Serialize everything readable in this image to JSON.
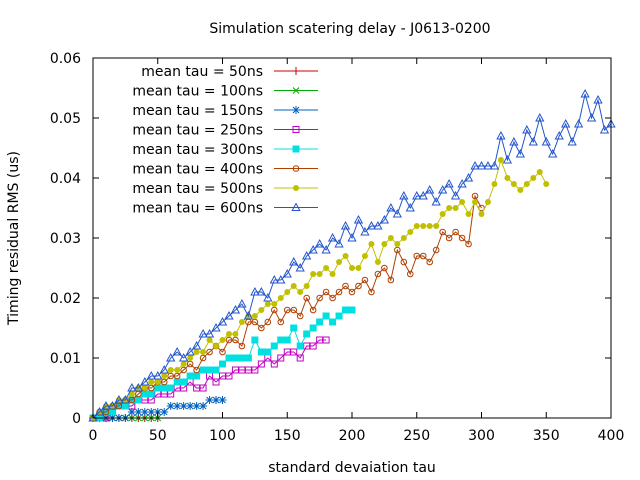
{
  "chart_data": {
    "type": "line",
    "title": "Simulation scatering delay - J0613-0200",
    "xlabel": "standard devaiation tau",
    "ylabel": "Timing residual RMS (us)",
    "xlim": [
      0,
      400
    ],
    "ylim": [
      0,
      0.06
    ],
    "xticks": [
      0,
      50,
      100,
      150,
      200,
      250,
      300,
      350,
      400
    ],
    "yticks": [
      0,
      0.01,
      0.02,
      0.03,
      0.04,
      0.05,
      0.06
    ],
    "xtick_labels": [
      "0",
      "50",
      "100",
      "150",
      "200",
      "250",
      "300",
      "350",
      "400"
    ],
    "ytick_labels": [
      "0",
      "0.01",
      "0.02",
      "0.03",
      "0.04",
      "0.05",
      "0.06"
    ],
    "grid": false,
    "legend_position": "top-left",
    "series": [
      {
        "name": "mean tau = 50ns",
        "color": "#cc0000",
        "marker": "plus",
        "x": [
          0,
          5,
          10,
          15,
          20,
          25,
          30,
          35,
          40,
          45,
          50
        ],
        "y": [
          0,
          0,
          0,
          0,
          0,
          0,
          0,
          0,
          0,
          0,
          0
        ]
      },
      {
        "name": "mean tau = 100ns",
        "color": "#00aa00",
        "marker": "cross",
        "x": [
          0,
          5,
          10,
          15,
          20,
          25,
          30,
          35,
          40,
          45,
          50
        ],
        "y": [
          0,
          0,
          0,
          0,
          0,
          0,
          0,
          0,
          0,
          0,
          0
        ]
      },
      {
        "name": "mean tau = 150ns",
        "color": "#0060c0",
        "marker": "star",
        "x": [
          0,
          5,
          10,
          15,
          20,
          25,
          30,
          35,
          40,
          45,
          50,
          55,
          60,
          65,
          70,
          75,
          80,
          85,
          90,
          95,
          100
        ],
        "y": [
          0,
          0,
          0,
          0,
          0,
          0,
          0.001,
          0.001,
          0.001,
          0.001,
          0.001,
          0.001,
          0.002,
          0.002,
          0.002,
          0.002,
          0.002,
          0.002,
          0.003,
          0.003,
          0.003
        ]
      },
      {
        "name": "mean tau = 250ns",
        "color": "#c000c0",
        "marker": "square",
        "x": [
          0,
          5,
          10,
          15,
          20,
          25,
          30,
          35,
          40,
          45,
          50,
          55,
          60,
          65,
          70,
          75,
          80,
          85,
          90,
          95,
          100,
          105,
          110,
          115,
          120,
          125,
          130,
          135,
          140,
          145,
          150,
          155,
          160,
          165,
          170,
          175,
          180
        ],
        "y": [
          0,
          0,
          0,
          0.001,
          0.002,
          0.002,
          0.002,
          0.003,
          0.003,
          0.003,
          0.004,
          0.004,
          0.004,
          0.005,
          0.005,
          0.006,
          0.005,
          0.005,
          0.007,
          0.006,
          0.007,
          0.007,
          0.008,
          0.008,
          0.008,
          0.008,
          0.009,
          0.01,
          0.009,
          0.01,
          0.011,
          0.011,
          0.01,
          0.012,
          0.012,
          0.013,
          0.013
        ]
      },
      {
        "name": "mean tau = 300ns",
        "color": "#00e0e0",
        "marker": "filled-square",
        "x": [
          0,
          5,
          10,
          15,
          20,
          25,
          30,
          35,
          40,
          45,
          50,
          55,
          60,
          65,
          70,
          75,
          80,
          85,
          90,
          95,
          100,
          105,
          110,
          115,
          120,
          125,
          130,
          135,
          140,
          145,
          150,
          155,
          160,
          165,
          170,
          175,
          180,
          185,
          190,
          195,
          200
        ],
        "y": [
          0,
          0,
          0.001,
          0.001,
          0.002,
          0.002,
          0.003,
          0.003,
          0.004,
          0.004,
          0.005,
          0.005,
          0.005,
          0.006,
          0.006,
          0.007,
          0.007,
          0.008,
          0.008,
          0.008,
          0.009,
          0.01,
          0.01,
          0.01,
          0.01,
          0.013,
          0.011,
          0.011,
          0.012,
          0.013,
          0.013,
          0.015,
          0.012,
          0.014,
          0.015,
          0.016,
          0.017,
          0.016,
          0.017,
          0.018,
          0.018
        ]
      },
      {
        "name": "mean tau = 400ns",
        "color": "#b04000",
        "marker": "circle",
        "x": [
          0,
          5,
          10,
          15,
          20,
          25,
          30,
          35,
          40,
          45,
          50,
          55,
          60,
          65,
          70,
          75,
          80,
          85,
          90,
          95,
          100,
          105,
          110,
          115,
          120,
          125,
          130,
          135,
          140,
          145,
          150,
          155,
          160,
          165,
          170,
          175,
          180,
          185,
          190,
          195,
          200,
          205,
          210,
          215,
          220,
          225,
          230,
          235,
          240,
          245,
          250,
          255,
          260,
          265,
          270,
          275,
          280,
          285,
          290,
          295,
          300
        ],
        "y": [
          0,
          0.001,
          0.001,
          0.002,
          0.002,
          0.003,
          0.003,
          0.004,
          0.005,
          0.005,
          0.006,
          0.006,
          0.007,
          0.007,
          0.008,
          0.009,
          0.008,
          0.01,
          0.011,
          0.012,
          0.011,
          0.013,
          0.013,
          0.012,
          0.016,
          0.016,
          0.015,
          0.016,
          0.018,
          0.016,
          0.018,
          0.018,
          0.017,
          0.02,
          0.018,
          0.02,
          0.021,
          0.02,
          0.021,
          0.022,
          0.021,
          0.022,
          0.023,
          0.021,
          0.024,
          0.025,
          0.023,
          0.028,
          0.026,
          0.024,
          0.027,
          0.027,
          0.026,
          0.028,
          0.031,
          0.03,
          0.031,
          0.03,
          0.029,
          0.037,
          0.035
        ]
      },
      {
        "name": "mean tau = 500ns",
        "color": "#c0c000",
        "marker": "filled-circle",
        "x": [
          0,
          5,
          10,
          15,
          20,
          25,
          30,
          35,
          40,
          45,
          50,
          55,
          60,
          65,
          70,
          75,
          80,
          85,
          90,
          95,
          100,
          105,
          110,
          115,
          120,
          125,
          130,
          135,
          140,
          145,
          150,
          155,
          160,
          165,
          170,
          175,
          180,
          185,
          190,
          195,
          200,
          205,
          210,
          215,
          220,
          225,
          230,
          235,
          240,
          245,
          250,
          255,
          260,
          265,
          270,
          275,
          280,
          285,
          290,
          295,
          300,
          305,
          310,
          315,
          320,
          325,
          330,
          335,
          340,
          345,
          350
        ],
        "y": [
          0,
          0.001,
          0.002,
          0.002,
          0.003,
          0.003,
          0.004,
          0.005,
          0.005,
          0.006,
          0.006,
          0.007,
          0.008,
          0.008,
          0.009,
          0.01,
          0.011,
          0.011,
          0.013,
          0.012,
          0.013,
          0.014,
          0.014,
          0.016,
          0.017,
          0.017,
          0.018,
          0.019,
          0.019,
          0.02,
          0.021,
          0.022,
          0.021,
          0.022,
          0.024,
          0.024,
          0.025,
          0.024,
          0.026,
          0.027,
          0.025,
          0.025,
          0.027,
          0.029,
          0.026,
          0.029,
          0.03,
          0.029,
          0.03,
          0.031,
          0.032,
          0.032,
          0.032,
          0.032,
          0.034,
          0.035,
          0.035,
          0.036,
          0.034,
          0.036,
          0.034,
          0.036,
          0.039,
          0.043,
          0.04,
          0.039,
          0.038,
          0.039,
          0.04,
          0.041,
          0.039
        ]
      },
      {
        "name": "mean tau = 600ns",
        "color": "#2255cc",
        "marker": "triangle",
        "x": [
          0,
          5,
          10,
          15,
          20,
          25,
          30,
          35,
          40,
          45,
          50,
          55,
          60,
          65,
          70,
          75,
          80,
          85,
          90,
          95,
          100,
          105,
          110,
          115,
          120,
          125,
          130,
          135,
          140,
          145,
          150,
          155,
          160,
          165,
          170,
          175,
          180,
          185,
          190,
          195,
          200,
          205,
          210,
          215,
          220,
          225,
          230,
          235,
          240,
          245,
          250,
          255,
          260,
          265,
          270,
          275,
          280,
          285,
          290,
          295,
          300,
          305,
          310,
          315,
          320,
          325,
          330,
          335,
          340,
          345,
          350,
          355,
          360,
          365,
          370,
          375,
          380,
          385,
          390,
          395,
          400
        ],
        "y": [
          0,
          0.001,
          0.002,
          0.002,
          0.003,
          0.003,
          0.005,
          0.005,
          0.006,
          0.007,
          0.007,
          0.008,
          0.01,
          0.011,
          0.01,
          0.011,
          0.012,
          0.014,
          0.014,
          0.015,
          0.016,
          0.017,
          0.018,
          0.019,
          0.017,
          0.021,
          0.021,
          0.02,
          0.023,
          0.023,
          0.024,
          0.026,
          0.025,
          0.027,
          0.028,
          0.029,
          0.028,
          0.03,
          0.029,
          0.032,
          0.03,
          0.033,
          0.031,
          0.032,
          0.032,
          0.033,
          0.035,
          0.034,
          0.037,
          0.035,
          0.037,
          0.037,
          0.038,
          0.036,
          0.038,
          0.039,
          0.037,
          0.039,
          0.04,
          0.042,
          0.042,
          0.042,
          0.042,
          0.047,
          0.043,
          0.046,
          0.044,
          0.048,
          0.046,
          0.05,
          0.046,
          0.044,
          0.047,
          0.049,
          0.046,
          0.049,
          0.054,
          0.05,
          0.053,
          0.048,
          0.049
        ]
      }
    ]
  }
}
